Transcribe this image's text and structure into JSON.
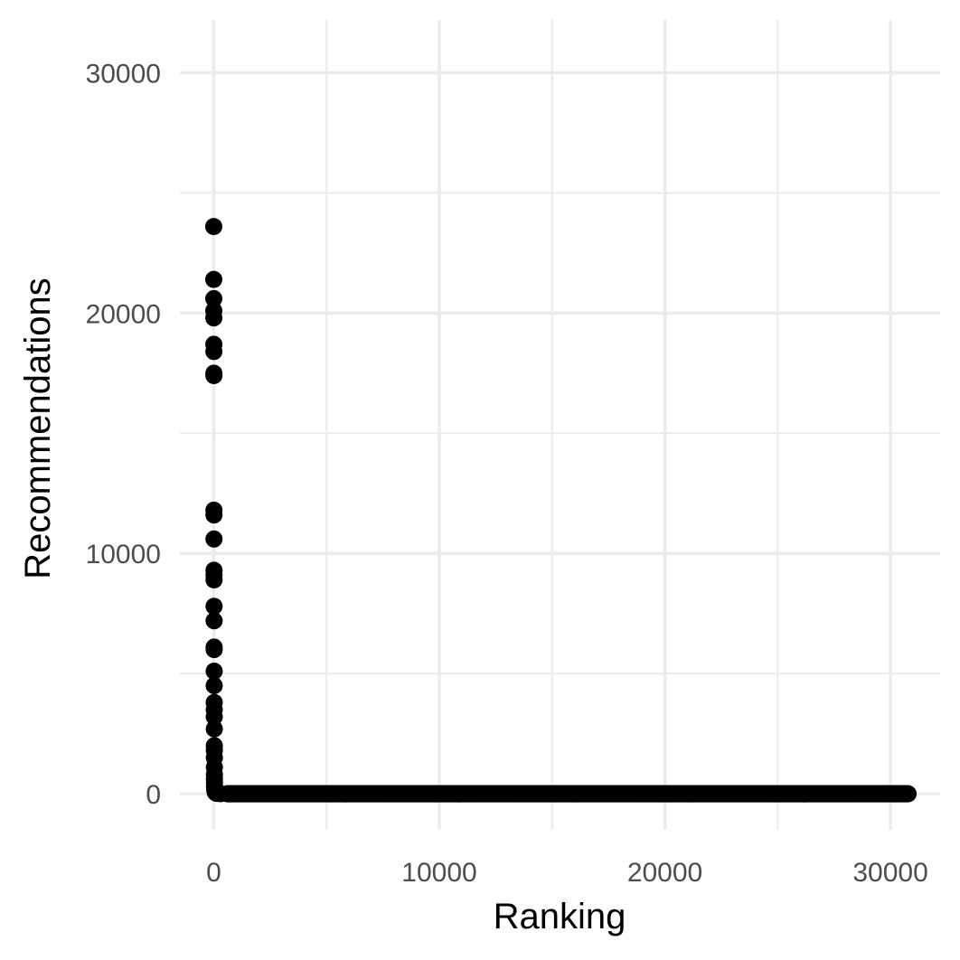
{
  "chart_data": {
    "type": "scatter",
    "title": "",
    "xlabel": "Ranking",
    "ylabel": "Recommendations",
    "xlim": [
      -1500,
      32200
    ],
    "ylim": [
      -1500,
      32200
    ],
    "x_ticks": [
      0,
      10000,
      20000,
      30000
    ],
    "y_ticks": [
      0,
      10000,
      20000,
      30000
    ],
    "x_minor_ticks": [
      5000,
      15000,
      25000
    ],
    "y_minor_ticks": [
      5000,
      15000,
      25000
    ],
    "grid": true,
    "legend": "none",
    "colors": {
      "point": "#000000",
      "grid": "#ebebeb",
      "tick_text": "#4d4d4d",
      "title_text": "#000000"
    },
    "series": [
      {
        "points": [
          [
            1,
            23600
          ],
          [
            2,
            21400
          ],
          [
            3,
            20600
          ],
          [
            4,
            20100
          ],
          [
            5,
            19800
          ],
          [
            6,
            18700
          ],
          [
            7,
            18400
          ],
          [
            8,
            17500
          ],
          [
            9,
            17400
          ],
          [
            10,
            11800
          ],
          [
            11,
            11600
          ],
          [
            12,
            10600
          ],
          [
            13,
            9300
          ],
          [
            14,
            9100
          ],
          [
            15,
            8900
          ],
          [
            16,
            7800
          ],
          [
            17,
            7200
          ],
          [
            18,
            6100
          ],
          [
            19,
            6000
          ],
          [
            20,
            5100
          ],
          [
            21,
            4500
          ],
          [
            22,
            3800
          ],
          [
            23,
            3500
          ],
          [
            24,
            3200
          ],
          [
            25,
            2700
          ],
          [
            26,
            2000
          ],
          [
            27,
            1800
          ],
          [
            28,
            1500
          ],
          [
            29,
            1100
          ],
          [
            30,
            800
          ],
          [
            31,
            600
          ],
          [
            33,
            450
          ],
          [
            35,
            300
          ],
          [
            40,
            200
          ],
          [
            50,
            120
          ],
          [
            70,
            60
          ],
          [
            100,
            30
          ],
          [
            150,
            15
          ],
          [
            300,
            5
          ],
          [
            600,
            0
          ]
        ],
        "tail": {
          "x_start": 600,
          "x_end": 30800,
          "step": 30,
          "y": 0
        }
      }
    ]
  }
}
